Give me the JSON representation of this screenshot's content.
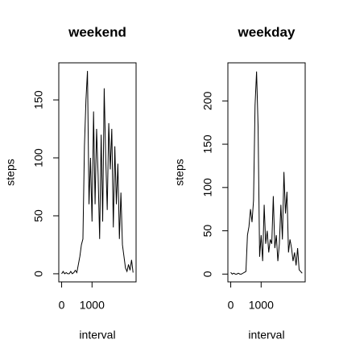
{
  "chart_data": [
    {
      "type": "line",
      "title": "weekend",
      "xlabel": "interval",
      "ylabel": "steps",
      "color": "#000000",
      "x": [
        0,
        50,
        100,
        150,
        200,
        250,
        300,
        350,
        400,
        450,
        500,
        550,
        600,
        650,
        700,
        750,
        800,
        850,
        900,
        950,
        1000,
        1050,
        1100,
        1150,
        1200,
        1250,
        1300,
        1350,
        1400,
        1450,
        1500,
        1550,
        1600,
        1650,
        1700,
        1750,
        1800,
        1850,
        1900,
        1950,
        2000,
        2050,
        2100,
        2150,
        2200,
        2250,
        2300,
        2350
      ],
      "values": [
        0,
        2,
        0,
        1,
        0,
        0,
        2,
        0,
        1,
        3,
        1,
        8,
        15,
        25,
        30,
        110,
        150,
        175,
        60,
        100,
        45,
        140,
        60,
        125,
        85,
        30,
        120,
        45,
        160,
        100,
        55,
        130,
        90,
        125,
        40,
        110,
        60,
        95,
        30,
        70,
        25,
        15,
        5,
        2,
        8,
        3,
        12,
        1
      ],
      "xlim": [
        -94,
        2449
      ],
      "ylim": [
        -7,
        182
      ],
      "xticks": [
        0,
        1000
      ],
      "yticks": [
        0,
        50,
        100,
        150
      ]
    },
    {
      "type": "line",
      "title": "weekday",
      "xlabel": "interval",
      "ylabel": "steps",
      "color": "#000000",
      "x": [
        0,
        50,
        100,
        150,
        200,
        250,
        300,
        350,
        400,
        450,
        500,
        550,
        600,
        650,
        700,
        750,
        800,
        850,
        900,
        950,
        1000,
        1050,
        1100,
        1150,
        1200,
        1250,
        1300,
        1350,
        1400,
        1450,
        1500,
        1550,
        1600,
        1650,
        1700,
        1750,
        1800,
        1850,
        1900,
        1950,
        2000,
        2050,
        2100,
        2150,
        2200,
        2250,
        2300,
        2350
      ],
      "values": [
        2,
        0,
        1,
        0,
        0,
        1,
        0,
        0,
        1,
        2,
        3,
        45,
        55,
        75,
        60,
        85,
        195,
        234,
        170,
        20,
        45,
        15,
        80,
        35,
        50,
        25,
        40,
        35,
        90,
        30,
        45,
        15,
        35,
        80,
        40,
        118,
        70,
        95,
        25,
        40,
        30,
        15,
        25,
        10,
        30,
        5,
        3,
        1
      ],
      "xlim": [
        -94,
        2449
      ],
      "ylim": [
        -9,
        244
      ],
      "xticks": [
        0,
        1000
      ],
      "yticks": [
        0,
        50,
        100,
        150,
        200
      ]
    }
  ]
}
